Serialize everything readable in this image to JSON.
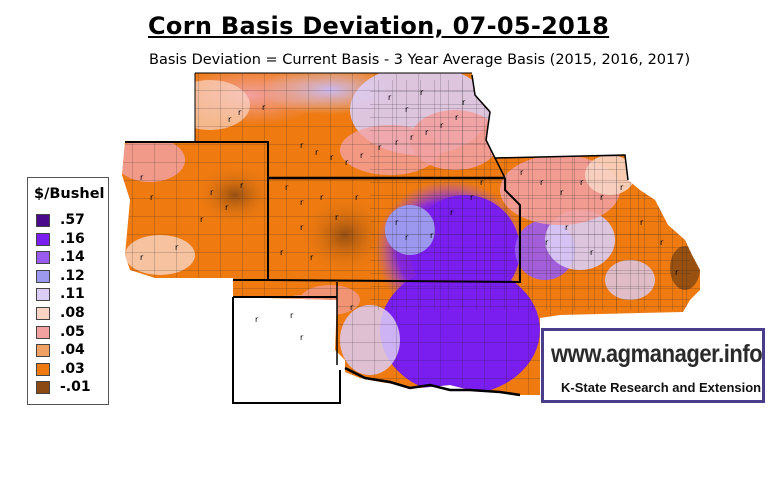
{
  "title": "Corn Basis Deviation, 07-05-2018",
  "subtitle": "Basis Deviation = Current Basis - 3 Year Average Basis (2015, 2016, 2017)",
  "legend": {
    "title": "$/Bushel",
    "items": [
      {
        "label": ".57",
        "color": "#4b0a8c"
      },
      {
        "label": ".16",
        "color": "#7a1ef0"
      },
      {
        "label": ".14",
        "color": "#9a5cf0"
      },
      {
        "label": ".12",
        "color": "#9c98f0"
      },
      {
        "label": ".11",
        "color": "#dccdf5"
      },
      {
        "label": ".08",
        "color": "#f8d4c4"
      },
      {
        "label": ".05",
        "color": "#f2a0a0"
      },
      {
        "label": ".04",
        "color": "#f0a060"
      },
      {
        "label": ".03",
        "color": "#ee7a10"
      },
      {
        "label": "-.01",
        "color": "#8a4a12"
      }
    ]
  },
  "logo": {
    "url_text": "www.agmanager.info",
    "org_text": "K-State Research and Extension"
  }
}
